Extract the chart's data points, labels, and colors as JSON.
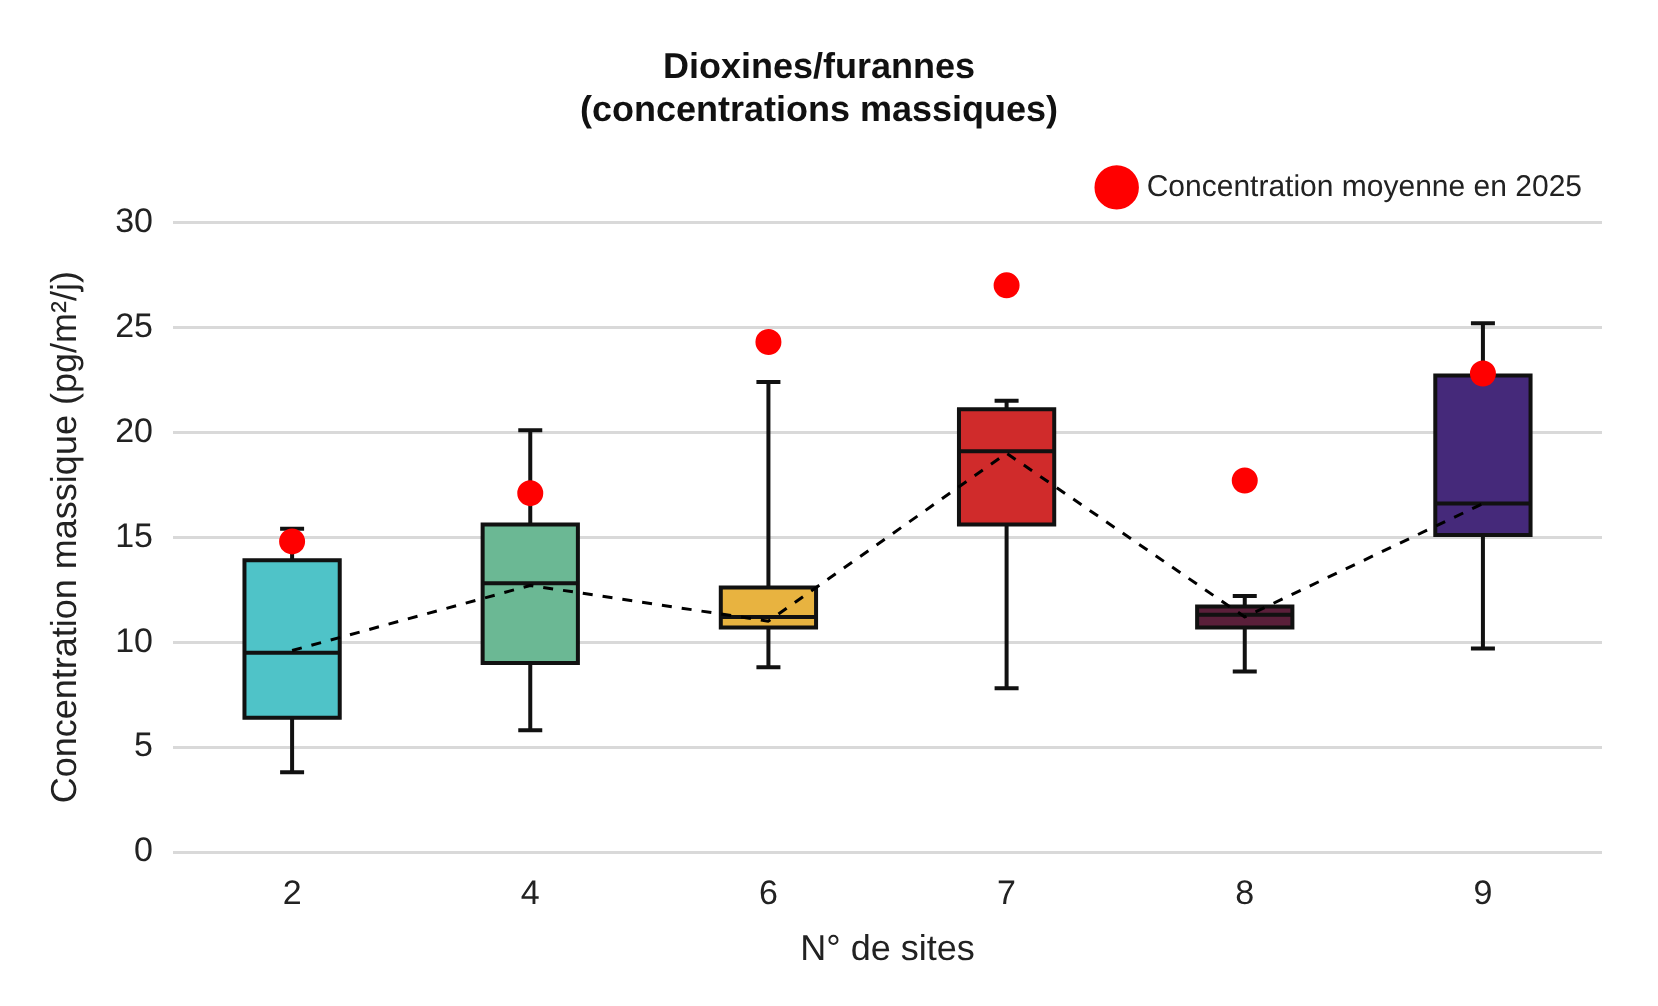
{
  "chart_data": {
    "type": "box",
    "title": "Dioxines/furannes\n(concentrations massiques)",
    "xlabel": "N° de sites",
    "ylabel": "Concentration massique (pg/m²/j)",
    "categories": [
      "2",
      "4",
      "6",
      "7",
      "8",
      "9"
    ],
    "colors": [
      "#4fc3c8",
      "#6bb894",
      "#e8b340",
      "#d02b2b",
      "#5a1f3a",
      "#45297a"
    ],
    "boxes": [
      {
        "low": 3.8,
        "q1": 6.4,
        "median": 9.5,
        "q3": 13.9,
        "high": 15.4
      },
      {
        "low": 5.8,
        "q1": 9.0,
        "median": 12.8,
        "q3": 15.6,
        "high": 20.1
      },
      {
        "low": 8.8,
        "q1": 10.7,
        "median": 11.2,
        "q3": 12.6,
        "high": 22.4
      },
      {
        "low": 7.8,
        "q1": 15.6,
        "median": 19.1,
        "q3": 21.1,
        "high": 21.5
      },
      {
        "low": 8.6,
        "q1": 10.7,
        "median": 11.3,
        "q3": 11.7,
        "high": 12.2
      },
      {
        "low": 9.7,
        "q1": 15.1,
        "median": 16.6,
        "q3": 22.7,
        "high": 25.2
      }
    ],
    "series": [
      {
        "type": "line",
        "color": "#000000",
        "line_style": "dashed",
        "marker": "none",
        "values": [
          9.6,
          12.7,
          11.0,
          19.0,
          11.2,
          16.6
        ]
      },
      {
        "type": "scatter",
        "marker": "circle",
        "name": "Concentration moyenne en 2025",
        "color": "#ff0000",
        "values": [
          14.8,
          17.1,
          24.3,
          27.0,
          17.7,
          22.8
        ]
      }
    ],
    "ylim": [
      0,
      30
    ],
    "yticks": [
      0,
      5,
      10,
      15,
      20,
      25,
      30
    ],
    "grid": "y",
    "legend": "top right"
  }
}
